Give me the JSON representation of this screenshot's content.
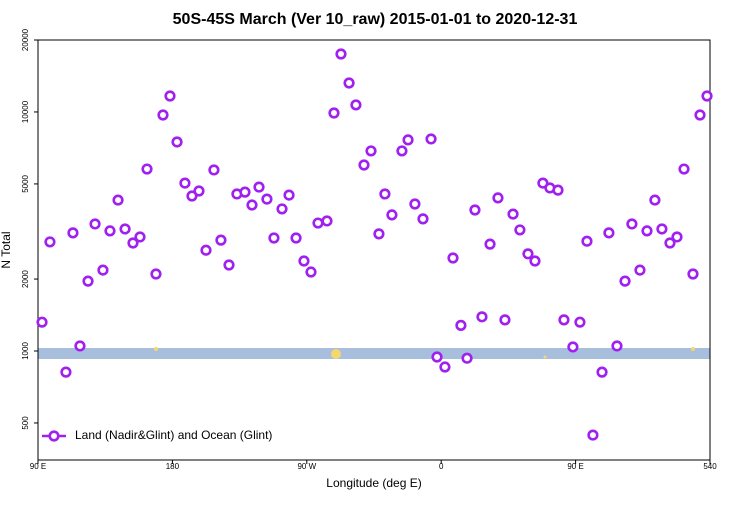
{
  "chart_data": {
    "type": "scatter",
    "title": "50S-45S March (Ver 10_raw)   2015-01-01 to 2020-12-31",
    "x_label": "Longitude (deg E)",
    "y_label": "N Total",
    "xlim": [
      90,
      540
    ],
    "xticks": [
      {
        "value": 90,
        "label": "90 E"
      },
      180,
      {
        "value": 270,
        "label": "90 W"
      },
      {
        "value": 360,
        "label": "0"
      },
      {
        "value": 450,
        "label": "90 E"
      },
      540
    ],
    "ylim": [
      350,
      20000
    ],
    "yticks": [
      500,
      1000,
      2000,
      5000,
      10000,
      20000
    ],
    "log_y": true,
    "legend_position": "bottom-left",
    "series": [
      {
        "name": "Land (Nadir&Glint) and Ocean (Glint)",
        "color": "#a020f0",
        "x": [
          92.7,
          98.0,
          108.7,
          113.4,
          118.1,
          123.5,
          128.2,
          133.5,
          138.2,
          143.6,
          148.3,
          153.6,
          158.3,
          163.0,
          169.0,
          173.7,
          178.4,
          183.1,
          188.4,
          193.1,
          197.8,
          202.5,
          207.8,
          212.5,
          217.9,
          223.2,
          228.6,
          233.3,
          238.0,
          243.3,
          248.0,
          253.4,
          258.1,
          262.8,
          268.1,
          272.8,
          277.5,
          283.5,
          288.2,
          292.9,
          298.3,
          302.9,
          308.3,
          313.0,
          318.3,
          322.3,
          327.0,
          333.7,
          337.8,
          342.4,
          347.8,
          353.2,
          357.2,
          362.5,
          367.9,
          373.2,
          377.3,
          382.6,
          387.3,
          392.7,
          398.0,
          402.7,
          408.1,
          412.7,
          418.1,
          422.8,
          428.1,
          432.8,
          438.2,
          442.2,
          448.2,
          452.9,
          457.6,
          461.6,
          467.7,
          472.3,
          477.7,
          483.1,
          487.7,
          493.1,
          497.8,
          503.1,
          507.8,
          513.2,
          517.9,
          522.6,
          528.6,
          533.3,
          538.0
        ],
        "values": [
          1320,
          2860,
          816,
          3120,
          1050,
          1960,
          3400,
          2180,
          3180,
          4280,
          3240,
          2830,
          3000,
          5770,
          2100,
          9710,
          11660,
          7490,
          5040,
          4450,
          4670,
          2640,
          5720,
          2910,
          2290,
          4540,
          4620,
          4080,
          4850,
          4320,
          2970,
          3930,
          4490,
          2970,
          2380,
          2140,
          3430,
          3500,
          9900,
          17480,
          13220,
          10700,
          6000,
          6870,
          3090,
          4540,
          3710,
          6870,
          7640,
          4120,
          3570,
          7710,
          944,
          857,
          2450,
          1280,
          933,
          3890,
          1390,
          2800,
          4370,
          1350,
          3740,
          3210,
          2550,
          2380,
          5040,
          4810,
          4710,
          1350,
          1040,
          1320,
          2880,
          445,
          816,
          3120,
          1050,
          1960,
          3400,
          2180,
          3180,
          4280,
          3240,
          2830,
          3000,
          5770,
          2100,
          9710,
          11660
        ]
      }
    ]
  }
}
